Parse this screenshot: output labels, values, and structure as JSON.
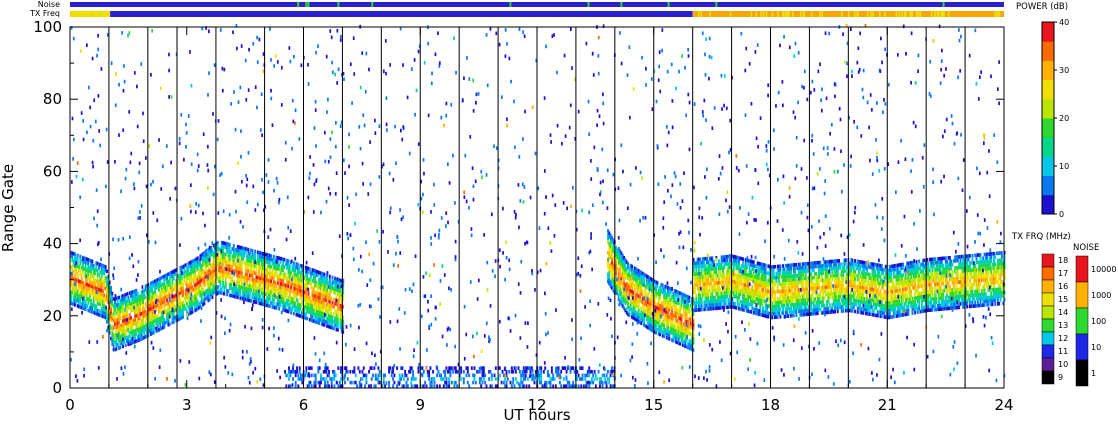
{
  "chart_data": {
    "type": "heatmap",
    "xlabel": "UT hours",
    "ylabel": "Range Gate",
    "xlim": [
      0,
      24
    ],
    "ylim": [
      0,
      100
    ],
    "x_ticks": [
      0,
      3,
      6,
      9,
      12,
      15,
      18,
      21,
      24
    ],
    "x_tick_labels": [
      "0",
      "3",
      "6",
      "9",
      "12",
      "15",
      "18",
      "21",
      "24"
    ],
    "y_ticks": [
      0,
      20,
      40,
      60,
      80,
      100
    ],
    "y_tick_labels": [
      "0",
      "20",
      "40",
      "60",
      "80",
      "100"
    ],
    "scan_boundaries_ut": [
      1.0,
      2.0,
      2.75,
      3.75,
      5.0,
      6.0,
      7.0,
      8.0,
      9.0,
      10.0,
      11.0,
      12.0,
      13.0,
      14.0,
      15.0,
      16.0,
      17.0,
      18.0,
      19.0,
      20.0,
      21.0,
      22.0,
      23.0
    ],
    "top_bars": {
      "noise_label": "Noise",
      "txfreq_label": "TX Freq",
      "noise_color": "#2a1fd2",
      "txfreq_segments": [
        {
          "from": 0.0,
          "to": 1.0,
          "color": "#f6a800"
        },
        {
          "from": 1.0,
          "to": 16.0,
          "color": "#2a1fd2"
        },
        {
          "from": 16.0,
          "to": 24.0,
          "color": "#f6a800"
        }
      ]
    },
    "echo_bands": [
      {
        "name": "main",
        "points": [
          [
            0.0,
            30
          ],
          [
            0.9,
            26
          ],
          [
            1.1,
            17
          ],
          [
            1.8,
            20
          ],
          [
            2.5,
            24
          ],
          [
            3.2,
            28
          ],
          [
            3.8,
            33
          ],
          [
            4.5,
            31
          ],
          [
            5.5,
            28
          ],
          [
            6.5,
            24
          ],
          [
            7.0,
            22
          ]
        ],
        "peak_power_db": 35
      },
      {
        "name": "main-evening",
        "points": [
          [
            13.8,
            36
          ],
          [
            14.3,
            27
          ],
          [
            15.0,
            22
          ],
          [
            15.8,
            18
          ],
          [
            16.0,
            17
          ]
        ],
        "peak_power_db": 36
      },
      {
        "name": "after-16",
        "points": [
          [
            16.0,
            28
          ],
          [
            17.0,
            29
          ],
          [
            18.0,
            26
          ],
          [
            19.0,
            27
          ],
          [
            20.0,
            28
          ],
          [
            21.0,
            26
          ],
          [
            22.0,
            28
          ],
          [
            23.0,
            29
          ],
          [
            24.0,
            30
          ]
        ],
        "peak_power_db": 30
      },
      {
        "name": "ground-scatter",
        "points": [
          [
            5.5,
            2
          ],
          [
            14.0,
            2
          ]
        ],
        "peak_power_db": 8
      }
    ],
    "power_colorbar": {
      "title": "POWER (dB)",
      "min": 0,
      "max": 40,
      "ticks": [
        0,
        10,
        20,
        30,
        40
      ],
      "tick_labels": [
        "0",
        "10",
        "20",
        "30",
        "40"
      ],
      "colors": [
        "#1e0fd2",
        "#0a78f0",
        "#00c8e6",
        "#00d68a",
        "#2ed82e",
        "#b8e600",
        "#f0e000",
        "#ffb000",
        "#ff6a00",
        "#e8141e"
      ]
    },
    "txfreq_colorbar": {
      "title": "TX FRQ (MHz)",
      "labels": [
        "18",
        "17",
        "16",
        "15",
        "14",
        "13",
        "12",
        "11",
        "10",
        "9"
      ],
      "colors": [
        "#e8141e",
        "#ff6a00",
        "#ffb000",
        "#f0e000",
        "#b8e600",
        "#2ed82e",
        "#00c8e6",
        "#1e28e6",
        "#5a1e96",
        "#000000"
      ]
    },
    "noise_colorbar": {
      "title": "NOISE",
      "labels": [
        "10000",
        "1000",
        "100",
        "10",
        "1"
      ],
      "colors": [
        "#e8141e",
        "#ffb000",
        "#2ed82e",
        "#1e28e6",
        "#000000"
      ]
    }
  }
}
